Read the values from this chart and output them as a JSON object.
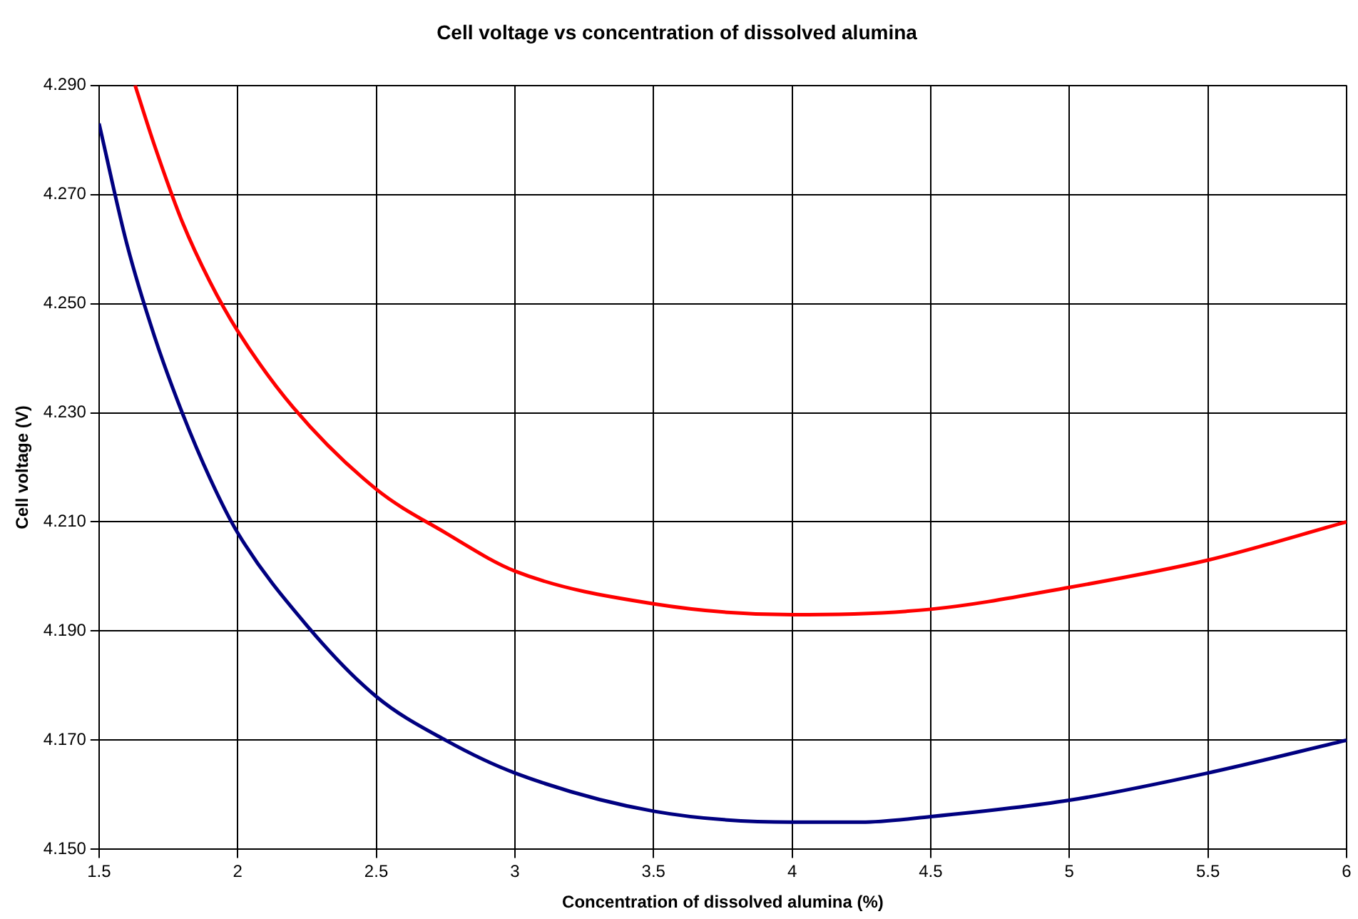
{
  "chart_data": {
    "type": "line",
    "title": "Cell voltage vs concentration of dissolved alumina",
    "xlabel": "Concentration of dissolved alumina (%)",
    "ylabel": "Cell voltage (V)",
    "xlim": [
      1.5,
      6
    ],
    "xticks": [
      1.5,
      2,
      2.5,
      3,
      3.5,
      4,
      4.5,
      5,
      5.5,
      6
    ],
    "ylim": [
      4.15,
      4.29
    ],
    "yticks": [
      {
        "value": 4.15,
        "label": "4.150"
      },
      {
        "value": 4.17,
        "label": "4.170"
      },
      {
        "value": 4.19,
        "label": "4.190"
      },
      {
        "value": 4.21,
        "label": "4.210"
      },
      {
        "value": 4.23,
        "label": "4.230"
      },
      {
        "value": 4.25,
        "label": "4.250"
      },
      {
        "value": 4.27,
        "label": "4.270"
      },
      {
        "value": 4.29,
        "label": "4.290"
      }
    ],
    "grid": true,
    "legend": false,
    "marker": "none",
    "line_style": "solid",
    "series": [
      {
        "color": "#ff0000",
        "x": [
          1.63,
          1.7,
          1.8,
          1.9,
          2.0,
          2.2,
          2.5,
          2.75,
          3.0,
          3.5,
          4.0,
          4.5,
          5.0,
          5.5,
          6.0
        ],
        "values": [
          4.29,
          4.279,
          4.265,
          4.254,
          4.245,
          4.231,
          4.216,
          4.208,
          4.201,
          4.195,
          4.193,
          4.194,
          4.198,
          4.203,
          4.21
        ]
      },
      {
        "color": "#000080",
        "x": [
          1.5,
          1.6,
          1.7,
          1.8,
          1.9,
          2.0,
          2.25,
          2.5,
          2.75,
          3.0,
          3.5,
          4.0,
          4.25,
          4.5,
          5.0,
          5.5,
          6.0
        ],
        "values": [
          4.283,
          4.261,
          4.244,
          4.23,
          4.218,
          4.208,
          4.191,
          4.178,
          4.17,
          4.164,
          4.157,
          4.155,
          4.155,
          4.156,
          4.159,
          4.164,
          4.17
        ]
      }
    ]
  }
}
